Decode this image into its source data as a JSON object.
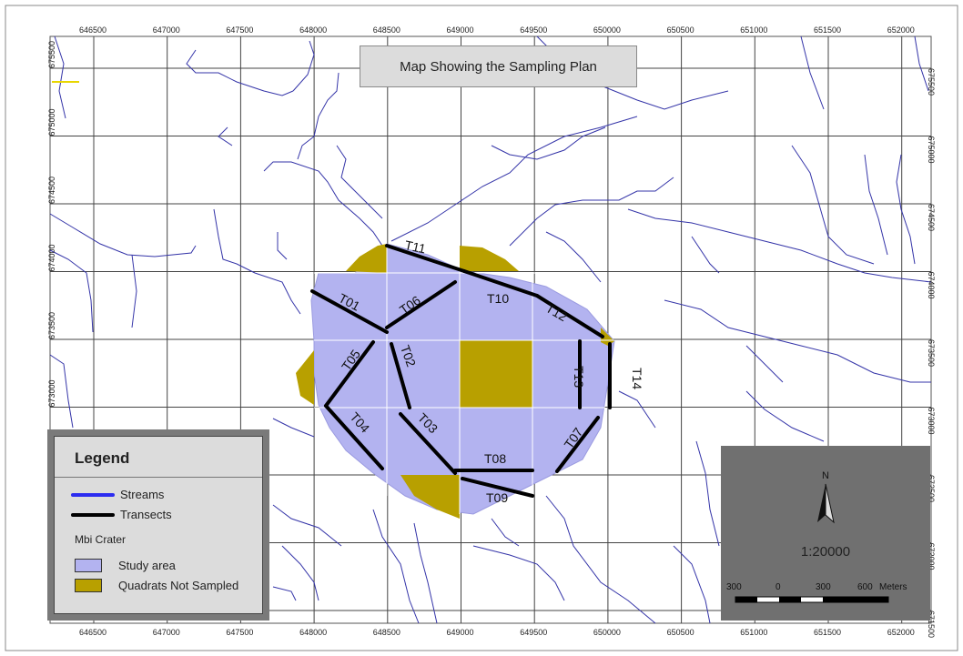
{
  "map": {
    "title": "Map Showing the Sampling Plan",
    "x_ticks": [
      "646500",
      "647000",
      "647500",
      "648000",
      "648500",
      "649000",
      "649500",
      "650000",
      "650500",
      "651000",
      "651500",
      "652000"
    ],
    "y_ticks": [
      "675500",
      "675000",
      "674500",
      "674000",
      "673500",
      "673000",
      "672500",
      "672000",
      "671500"
    ],
    "transects": [
      "T01",
      "T02",
      "T03",
      "T04",
      "T05",
      "T06",
      "T07",
      "T08",
      "T09",
      "T10",
      "T11",
      "T12",
      "T13",
      "T14"
    ],
    "colors": {
      "study_area": "#b3b3f0",
      "not_sampled": "#b8a000",
      "streams": "#3434a8",
      "transects": "#000000"
    }
  },
  "legend": {
    "title": "Legend",
    "streams": "Streams",
    "transects": "Transects",
    "group": "Mbi Crater",
    "study_area": "Study area",
    "not_sampled": "Quadrats Not Sampled"
  },
  "scale": {
    "north": "N",
    "ratio": "1:20000",
    "bar_labels": [
      "300",
      "0",
      "300",
      "600",
      "Meters"
    ]
  }
}
